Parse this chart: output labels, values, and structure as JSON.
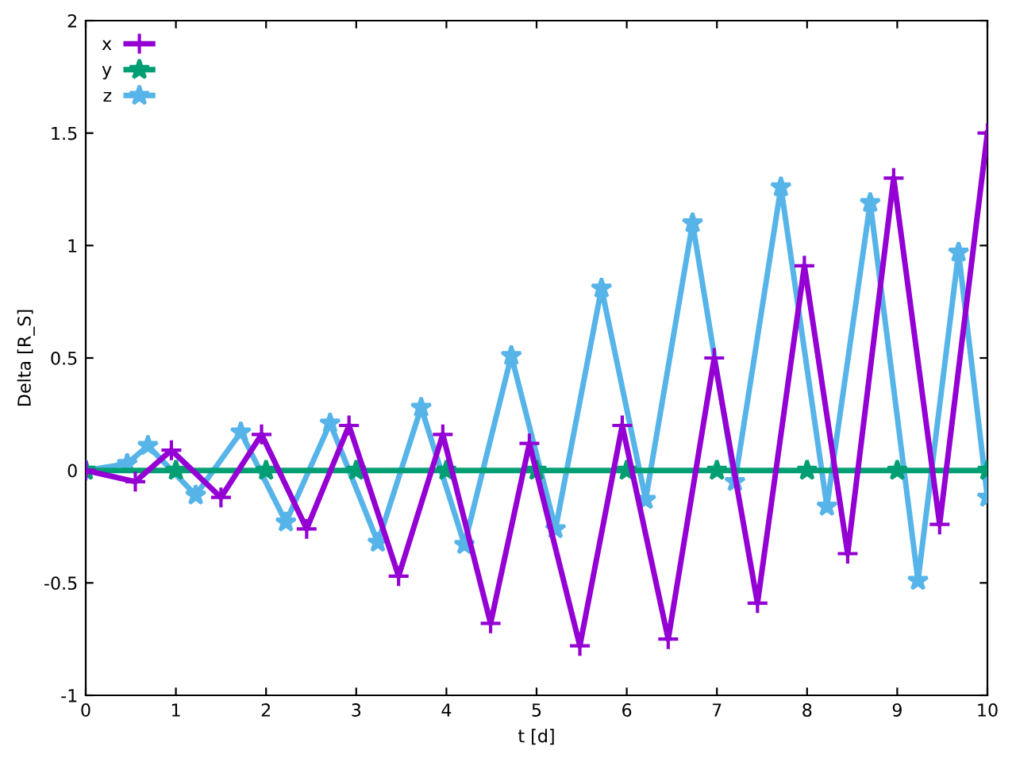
{
  "chart_data": {
    "type": "line",
    "xlabel": "t [d]",
    "ylabel": "Delta [R_S]",
    "xlim": [
      0,
      10
    ],
    "ylim": [
      -1,
      2
    ],
    "xticks": [
      0,
      1,
      2,
      3,
      4,
      5,
      6,
      7,
      8,
      9,
      10
    ],
    "yticks": [
      -1,
      -0.5,
      0,
      0.5,
      1,
      1.5,
      2
    ],
    "grid": false,
    "legend": "top left",
    "line_style": "solid",
    "series": [
      {
        "name": "x",
        "color": "#9400d3",
        "marker": "cross",
        "x": [
          0,
          0.55,
          0.95,
          1.5,
          1.95,
          2.45,
          2.92,
          3.47,
          3.96,
          4.49,
          4.92,
          5.48,
          5.95,
          6.46,
          6.97,
          7.45,
          7.97,
          8.45,
          8.96,
          9.47,
          10
        ],
        "values": [
          0,
          -0.05,
          0.09,
          -0.12,
          0.16,
          -0.26,
          0.2,
          -0.47,
          0.16,
          -0.68,
          0.12,
          -0.78,
          0.2,
          -0.75,
          0.5,
          -0.59,
          0.91,
          -0.37,
          1.3,
          -0.24,
          1.5
        ]
      },
      {
        "name": "y",
        "color": "#009e73",
        "marker": "star",
        "x": [
          0,
          1,
          2,
          3,
          4,
          5,
          6,
          7,
          8,
          9,
          10
        ],
        "values": [
          0,
          0,
          0,
          0,
          0,
          0,
          0,
          0,
          0,
          0,
          0
        ]
      },
      {
        "name": "z",
        "color": "#56b4e9",
        "marker": "star",
        "x": [
          0,
          0.46,
          0.69,
          1.22,
          1.72,
          2.22,
          2.71,
          3.24,
          3.72,
          4.2,
          4.72,
          5.21,
          5.72,
          6.21,
          6.73,
          7.2,
          7.71,
          8.22,
          8.7,
          9.23,
          9.68,
          10
        ],
        "values": [
          0,
          0.03,
          0.11,
          -0.11,
          0.17,
          -0.23,
          0.21,
          -0.32,
          0.28,
          -0.33,
          0.51,
          -0.26,
          0.81,
          -0.13,
          1.1,
          -0.05,
          1.26,
          -0.16,
          1.19,
          -0.49,
          0.97,
          -0.12
        ]
      }
    ]
  }
}
